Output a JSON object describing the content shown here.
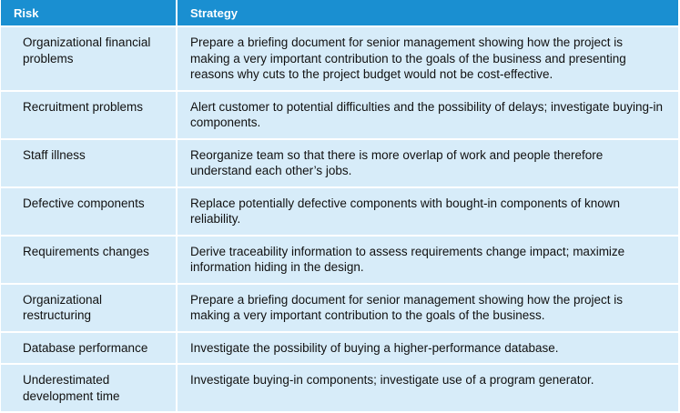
{
  "table": {
    "headers": {
      "risk": "Risk",
      "strategy": "Strategy"
    },
    "rows": [
      {
        "risk": "Organizational financial problems",
        "strategy": "Prepare a briefing document for senior management showing how the project is making a very important contribution to the goals of the business and presenting reasons why cuts to the project budget would not be cost-effective."
      },
      {
        "risk": "Recruitment problems",
        "strategy": "Alert customer to potential difficulties and the possibility of delays; investigate buying-in components."
      },
      {
        "risk": "Staff illness",
        "strategy": "Reorganize team so that there is more overlap of work and people therefore understand each other’s jobs."
      },
      {
        "risk": "Defective components",
        "strategy": "Replace potentially defective components with bought-in components of known reliability."
      },
      {
        "risk": "Requirements changes",
        "strategy": "Derive traceability information to assess requirements change impact; maximize information hiding in the design."
      },
      {
        "risk": "Organizational restructuring",
        "strategy": "Prepare a briefing document for senior management showing how the project is making a very important contribution to the goals of the business."
      },
      {
        "risk": "Database performance",
        "strategy": "Investigate the possibility of buying a higher-performance database."
      },
      {
        "risk": "Underestimated development time",
        "strategy": "Investigate buying-in components; investigate use of a program generator."
      }
    ]
  },
  "colors": {
    "header_bg": "#1a8fd1",
    "row_bg": "#d7ecf9"
  }
}
